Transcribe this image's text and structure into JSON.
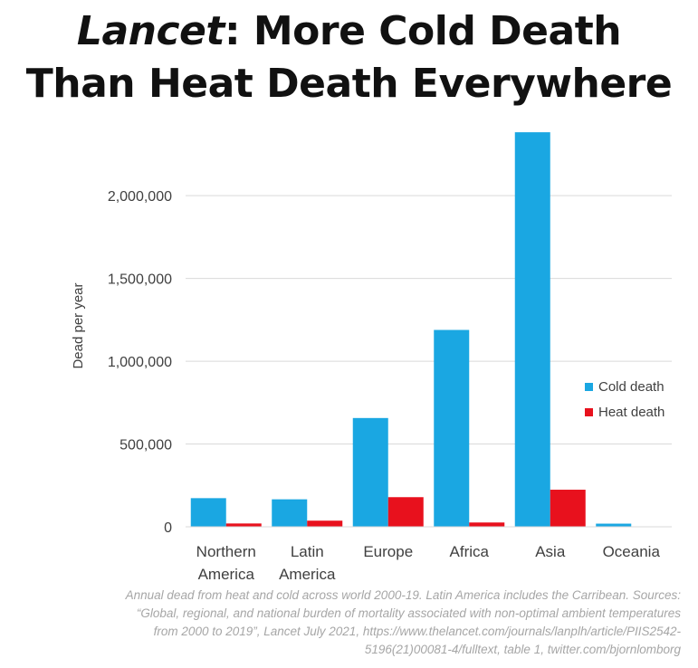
{
  "title_line1_italic": "Lancet",
  "title_line1_rest": ": More Cold Death",
  "title_line2": "Than Heat Death Everywhere",
  "note": [
    "Annual dead from heat and cold across world 2000-19. Latin America includes the Carribean. Sources:",
    "“Global, regional, and national burden of mortality associated with non-optimal ambient temperatures",
    "from 2000 to 2019”, Lancet July 2021, https://www.thelancet.com/journals/lanplh/article/PIIS2542-",
    "5196(21)00081-4/fulltext, table 1, twitter.com/bjornlomborg"
  ],
  "chart_data": {
    "type": "bar",
    "categories": [
      [
        "Northern",
        "America"
      ],
      [
        "Latin",
        "America"
      ],
      [
        "Europe"
      ],
      [
        "Africa"
      ],
      [
        "Asia"
      ],
      [
        "Oceania"
      ]
    ],
    "series": [
      {
        "name": "Cold death",
        "color": "#1aa7e2",
        "values": [
          173000,
          166000,
          657000,
          1189000,
          2383000,
          19000
        ]
      },
      {
        "name": "Heat death",
        "color": "#e8111d",
        "values": [
          20000,
          37000,
          179000,
          26000,
          224000,
          1000
        ]
      }
    ],
    "ylabel": "Dead per year",
    "yticks": [
      0,
      500000,
      1000000,
      1500000,
      2000000
    ],
    "ytick_labels": [
      "0",
      "500,000",
      "1,000,000",
      "1,500,000",
      "2,000,000"
    ],
    "ylim": [
      0,
      2400000
    ],
    "grid": true,
    "legend": "right"
  }
}
